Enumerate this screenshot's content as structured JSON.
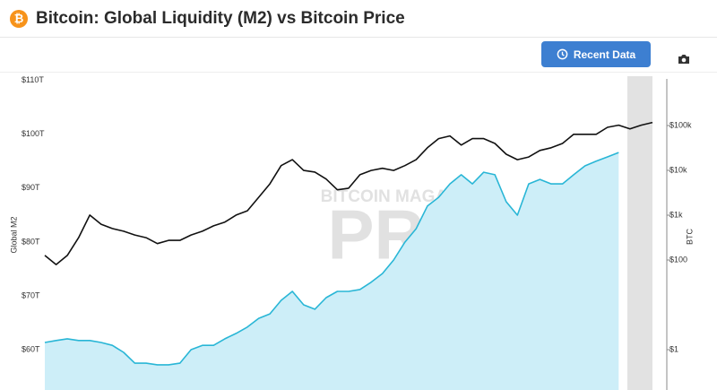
{
  "chart_data": {
    "type": "line",
    "title": "Bitcoin: Global Liquidity (M2) vs Bitcoin Price",
    "ylabel": "Global M2",
    "y2label": "BTC",
    "watermark": {
      "top": "BITCOIN MAGAZINE",
      "main": "PRO"
    },
    "ylim": [
      52.5,
      110.8
    ],
    "yticks": [
      {
        "value": 60,
        "label": "$60T"
      },
      {
        "value": 70,
        "label": "$70T"
      },
      {
        "value": 80,
        "label": "$80T"
      },
      {
        "value": 90,
        "label": "$90T"
      },
      {
        "value": 100,
        "label": "$100T"
      },
      {
        "value": 110,
        "label": "$110T"
      }
    ],
    "y2lim": [
      0.126,
      1260000
    ],
    "y2scale": "log",
    "y2ticks": [
      {
        "value": 1,
        "label": "$1"
      },
      {
        "value": 100,
        "label": "$100"
      },
      {
        "value": 1000,
        "label": "$1k"
      },
      {
        "value": 10000,
        "label": "$10k"
      },
      {
        "value": 100000,
        "label": "$100k"
      }
    ],
    "series": [
      {
        "color": "#111111",
        "values": [
          77.5,
          75.8,
          77.5,
          80.8,
          85.0,
          83.3,
          82.5,
          82.0,
          81.3,
          80.8,
          79.7,
          80.3,
          80.3,
          81.3,
          82.0,
          83.0,
          83.7,
          85.0,
          85.8,
          88.3,
          90.8,
          94.2,
          95.3,
          93.3,
          93.0,
          91.7,
          89.7,
          90.0,
          92.5,
          93.3,
          93.7,
          93.3,
          94.2,
          95.3,
          97.5,
          99.2,
          99.7,
          98.0,
          99.2,
          99.2,
          98.3,
          96.3,
          95.3,
          95.8,
          97.0,
          97.5,
          98.3,
          100.0,
          100.0,
          100.0,
          101.3,
          101.7,
          101.0,
          101.7,
          102.2
        ]
      },
      {
        "color": "#29b6d6",
        "fill": "#cdeef8",
        "axis": "y2",
        "area": true,
        "values": [
          1.45,
          1.6,
          1.75,
          1.6,
          1.6,
          1.45,
          1.25,
          0.87,
          0.5,
          0.5,
          0.46,
          0.46,
          0.5,
          1,
          1.25,
          1.25,
          1.75,
          2.3,
          3.2,
          5,
          6.3,
          12.6,
          20,
          10,
          8,
          14.5,
          20,
          20,
          22,
          32,
          50,
          100,
          250,
          500,
          1600,
          2500,
          5000,
          8000,
          5000,
          9100,
          8000,
          2000,
          1000,
          5000,
          6300,
          5000,
          5000,
          8000,
          12600,
          16000,
          20000,
          25000,
          null,
          null,
          null
        ]
      }
    ]
  },
  "toolbar": {
    "button": "Recent Data"
  }
}
